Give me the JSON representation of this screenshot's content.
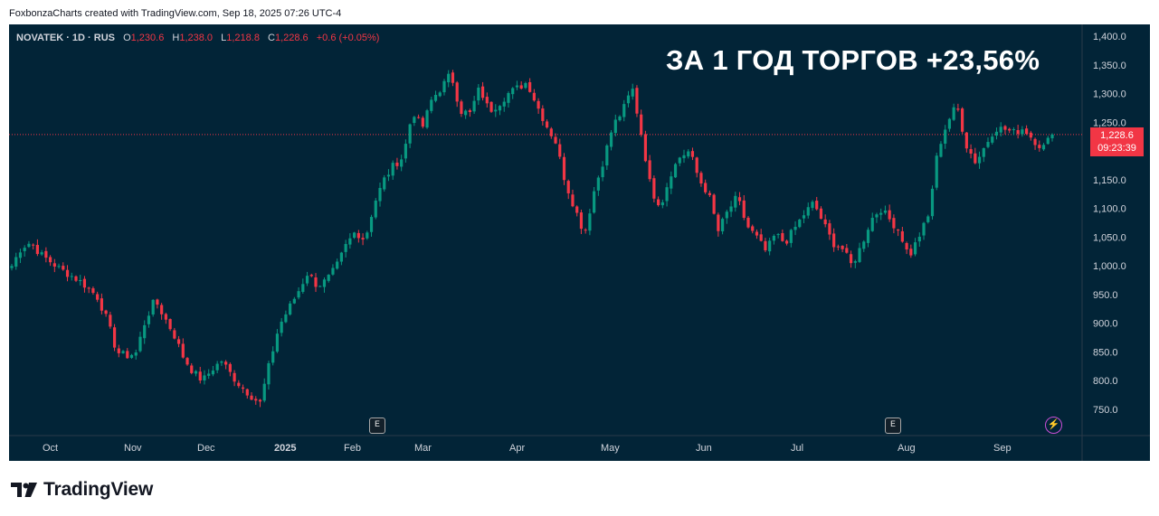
{
  "caption": "FoxbonzaCharts created with TradingView.com, Sep 18, 2025 07:26 UTC-4",
  "legend": {
    "symbol": "NOVATEK · 1D · RUS",
    "open_label": "O",
    "open": "1,230.6",
    "high_label": "H",
    "high": "1,238.0",
    "low_label": "L",
    "low": "1,218.8",
    "close_label": "C",
    "close": "1,228.6",
    "change": "+0.6 (+0.05%)"
  },
  "headline": "ЗА 1 ГОД ТОРГОВ +23,56%",
  "price_tag": {
    "price": "1,228.6",
    "countdown": "09:23:39"
  },
  "event_badges": [
    "E",
    "E"
  ],
  "footer": {
    "brand": "TradingView"
  },
  "colors": {
    "background": "#022437",
    "up": "#089981",
    "down": "#f23645",
    "axis_text": "#d1d4dc",
    "last_price_line": "#f23645"
  },
  "icons": {
    "earnings": "earnings-badge-icon",
    "dividend": "bolt-icon",
    "logo": "tradingview-logo-icon"
  },
  "chart_data": {
    "type": "candlestick",
    "ylim": [
      720,
      1410
    ],
    "y_scale": "linear",
    "yticks": [
      "1,400.0",
      "1,350.0",
      "1,300.0",
      "1,250.0",
      "1,200.0",
      "1,150.0",
      "1,100.0",
      "1,050.0",
      "1,000.0",
      "950.0",
      "900.0",
      "850.0",
      "800.0",
      "750.0"
    ],
    "xticks": [
      "Oct",
      "Nov",
      "Dec",
      "2025",
      "Feb",
      "Mar",
      "Apr",
      "May",
      "Jun",
      "Jul",
      "Aug",
      "Sep"
    ],
    "last_price": 1228.6,
    "grid": false,
    "close_path": [
      1000,
      1032,
      1041,
      1020,
      1008,
      995,
      985,
      975,
      962,
      945,
      905,
      850,
      843,
      848,
      905,
      941,
      910,
      880,
      840,
      815,
      800,
      820,
      835,
      810,
      790,
      775,
      760,
      830,
      895,
      925,
      955,
      988,
      965,
      975,
      998,
      1035,
      1060,
      1045,
      1110,
      1150,
      1175,
      1190,
      1270,
      1240,
      1290,
      1310,
      1335,
      1270,
      1265,
      1310,
      1270,
      1282,
      1300,
      1310,
      1320,
      1280,
      1245,
      1215,
      1145,
      1100,
      1055,
      1130,
      1185,
      1245,
      1270,
      1310,
      1225,
      1130,
      1105,
      1160,
      1190,
      1200,
      1150,
      1125,
      1060,
      1095,
      1120,
      1070,
      1050,
      1025,
      1055,
      1040,
      1065,
      1090,
      1110,
      1075,
      1040,
      1030,
      1000,
      1035,
      1080,
      1100,
      1080,
      1060,
      1015,
      1050,
      1085,
      1200,
      1250,
      1280,
      1210,
      1180,
      1210,
      1240,
      1238,
      1232,
      1240,
      1220,
      1205,
      1228.6
    ]
  }
}
